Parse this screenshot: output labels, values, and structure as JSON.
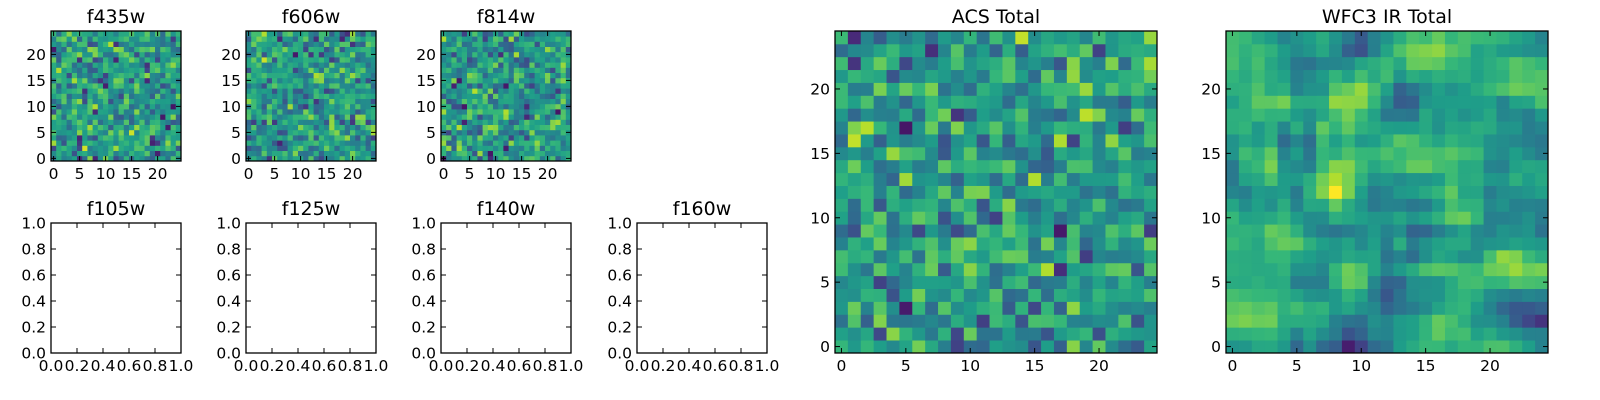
{
  "chart_data": [
    {
      "type": "heatmap",
      "title": "f435w",
      "colormap": "viridis",
      "shape": [
        25,
        25
      ],
      "xlim": [
        -0.5,
        24.5
      ],
      "ylim": [
        -0.5,
        24.5
      ],
      "x_ticks": [
        0,
        5,
        10,
        15,
        20
      ],
      "y_ticks": [
        0,
        5,
        10,
        15,
        20
      ],
      "seed": 11
    },
    {
      "type": "heatmap",
      "title": "f606w",
      "colormap": "viridis",
      "shape": [
        25,
        25
      ],
      "xlim": [
        -0.5,
        24.5
      ],
      "ylim": [
        -0.5,
        24.5
      ],
      "x_ticks": [
        0,
        5,
        10,
        15,
        20
      ],
      "y_ticks": [
        0,
        5,
        10,
        15,
        20
      ],
      "seed": 23
    },
    {
      "type": "heatmap",
      "title": "f814w",
      "colormap": "viridis",
      "shape": [
        25,
        25
      ],
      "xlim": [
        -0.5,
        24.5
      ],
      "ylim": [
        -0.5,
        24.5
      ],
      "x_ticks": [
        0,
        5,
        10,
        15,
        20
      ],
      "y_ticks": [
        0,
        5,
        10,
        15,
        20
      ],
      "seed": 37
    },
    {
      "type": "empty",
      "title": "f105w",
      "xlim": [
        0,
        1
      ],
      "ylim": [
        0,
        1
      ],
      "x_ticks": [
        "0.0",
        "0.2",
        "0.4",
        "0.6",
        "0.8",
        "1.0"
      ],
      "y_ticks": [
        "0.0",
        "0.2",
        "0.4",
        "0.6",
        "0.8",
        "1.0"
      ]
    },
    {
      "type": "empty",
      "title": "f125w",
      "xlim": [
        0,
        1
      ],
      "ylim": [
        0,
        1
      ],
      "x_ticks": [
        "0.0",
        "0.2",
        "0.4",
        "0.6",
        "0.8",
        "1.0"
      ],
      "y_ticks": [
        "0.0",
        "0.2",
        "0.4",
        "0.6",
        "0.8",
        "1.0"
      ]
    },
    {
      "type": "empty",
      "title": "f140w",
      "xlim": [
        0,
        1
      ],
      "ylim": [
        0,
        1
      ],
      "x_ticks": [
        "0.0",
        "0.2",
        "0.4",
        "0.6",
        "0.8",
        "1.0"
      ],
      "y_ticks": [
        "0.0",
        "0.2",
        "0.4",
        "0.6",
        "0.8",
        "1.0"
      ]
    },
    {
      "type": "empty",
      "title": "f160w",
      "xlim": [
        0,
        1
      ],
      "ylim": [
        0,
        1
      ],
      "x_ticks": [
        "0.0",
        "0.2",
        "0.4",
        "0.6",
        "0.8",
        "1.0"
      ],
      "y_ticks": [
        "0.0",
        "0.2",
        "0.4",
        "0.6",
        "0.8",
        "1.0"
      ]
    },
    {
      "type": "heatmap",
      "title": "ACS Total",
      "colormap": "viridis",
      "shape": [
        25,
        25
      ],
      "xlim": [
        -0.5,
        24.5
      ],
      "ylim": [
        -0.5,
        24.5
      ],
      "x_ticks": [
        0,
        5,
        10,
        15,
        20
      ],
      "y_ticks": [
        0,
        5,
        10,
        15,
        20
      ],
      "seed": 51
    },
    {
      "type": "heatmap",
      "title": "WFC3 IR Total",
      "colormap": "viridis",
      "shape": [
        25,
        25
      ],
      "xlim": [
        -0.5,
        24.5
      ],
      "ylim": [
        -0.5,
        24.5
      ],
      "x_ticks": [
        0,
        5,
        10,
        15,
        20
      ],
      "y_ticks": [
        0,
        5,
        10,
        15,
        20
      ],
      "seed": 67,
      "smooth": true
    }
  ]
}
